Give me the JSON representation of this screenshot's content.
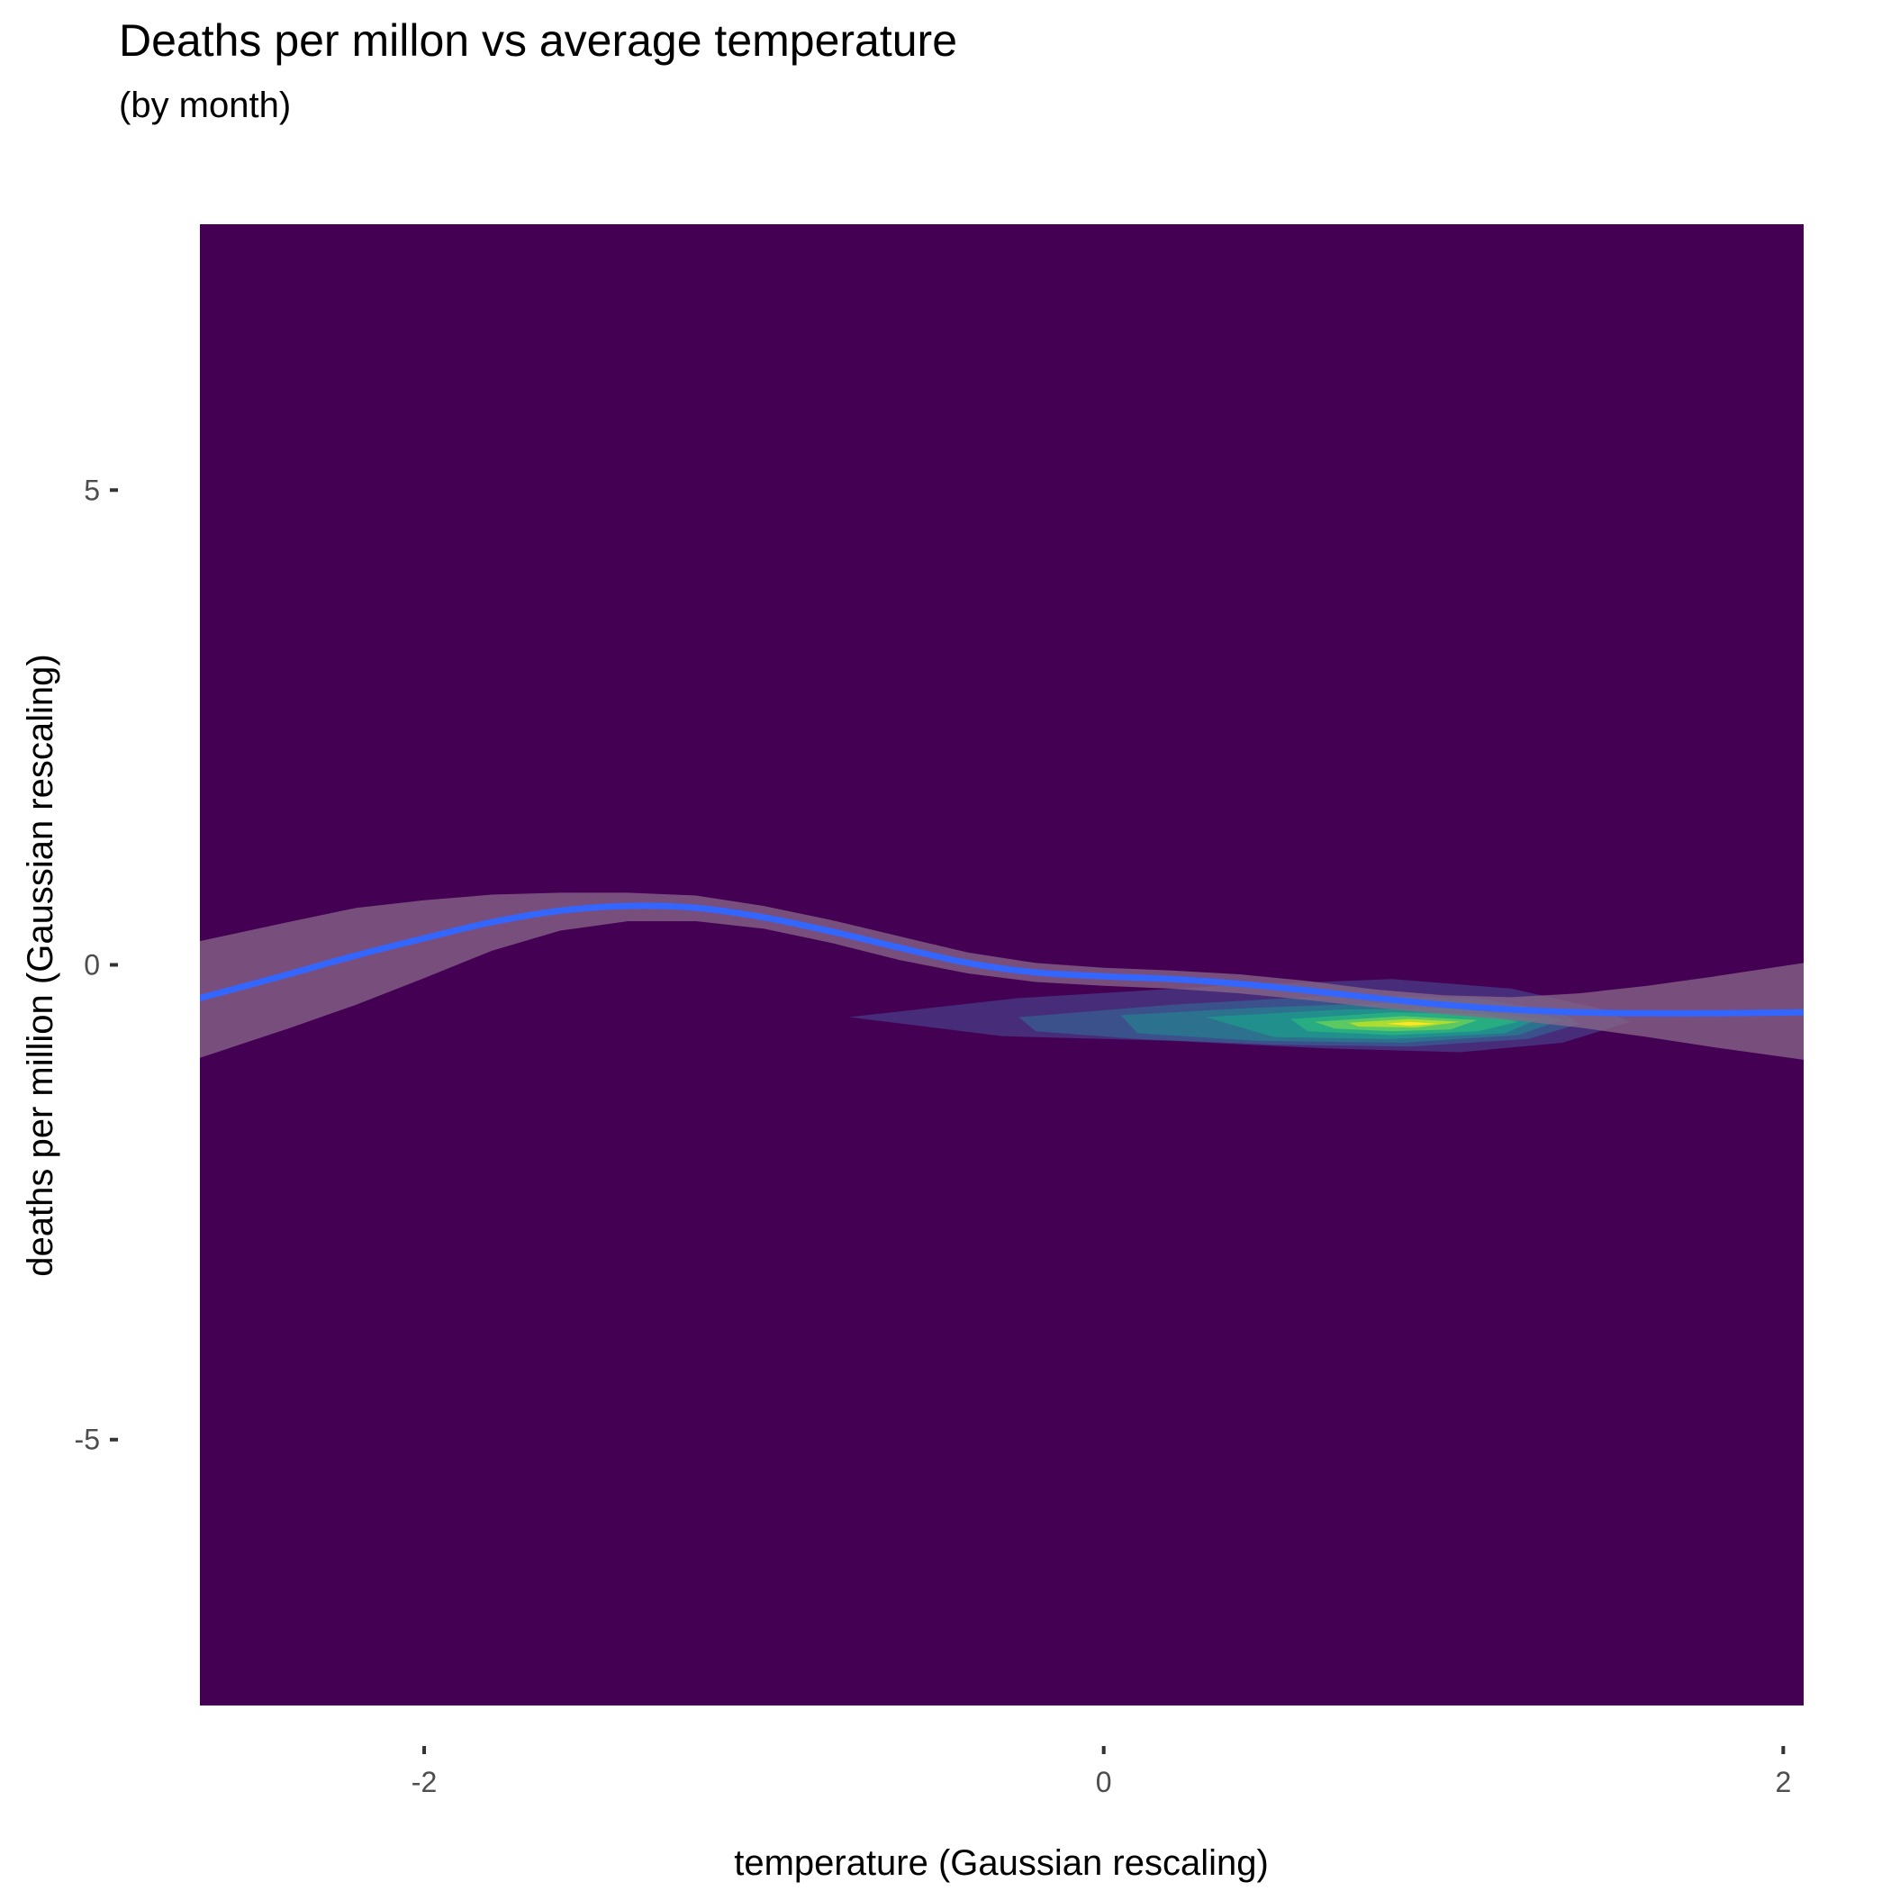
{
  "chart_data": {
    "type": "heatmap",
    "title": "Deaths per millon vs average temperature",
    "subtitle": "(by month)",
    "xlabel": "temperature (Gaussian rescaling)",
    "ylabel": "deaths per million (Gaussian rescaling)",
    "xlim": [
      -2.66,
      2.06
    ],
    "ylim": [
      -7.8,
      7.8
    ],
    "x_ticks": [
      -2,
      0,
      2
    ],
    "y_ticks": [
      5,
      0,
      -5
    ],
    "x_tick_labels": [
      "-2",
      "0",
      "2"
    ],
    "y_tick_labels": [
      "5",
      "0",
      "-5"
    ],
    "grid": false,
    "legend": "none",
    "colors": {
      "background": "#440154",
      "smooth_line": "#3366FF",
      "ribbon": "#8a6a8a",
      "density_levels": [
        "#472c7a",
        "#3b518b",
        "#2c718e",
        "#21908d",
        "#27ad81",
        "#5cc863",
        "#aadc32",
        "#fde725"
      ]
    },
    "density_contours": [
      {
        "level": 1,
        "points": [
          [
            -0.75,
            -0.55
          ],
          [
            -0.25,
            -0.35
          ],
          [
            0.35,
            -0.22
          ],
          [
            0.85,
            -0.15
          ],
          [
            1.2,
            -0.25
          ],
          [
            1.45,
            -0.45
          ],
          [
            1.55,
            -0.6
          ],
          [
            1.35,
            -0.82
          ],
          [
            1.05,
            -0.92
          ],
          [
            0.65,
            -0.88
          ],
          [
            0.2,
            -0.8
          ],
          [
            -0.3,
            -0.75
          ],
          [
            -0.75,
            -0.55
          ]
        ]
      },
      {
        "level": 2,
        "points": [
          [
            -0.25,
            -0.55
          ],
          [
            0.2,
            -0.42
          ],
          [
            0.7,
            -0.32
          ],
          [
            1.1,
            -0.35
          ],
          [
            1.35,
            -0.5
          ],
          [
            1.4,
            -0.62
          ],
          [
            1.25,
            -0.78
          ],
          [
            0.9,
            -0.86
          ],
          [
            0.5,
            -0.84
          ],
          [
            0.1,
            -0.78
          ],
          [
            -0.2,
            -0.7
          ],
          [
            -0.25,
            -0.55
          ]
        ]
      },
      {
        "level": 3,
        "points": [
          [
            0.05,
            -0.53
          ],
          [
            0.45,
            -0.45
          ],
          [
            0.85,
            -0.4
          ],
          [
            1.2,
            -0.45
          ],
          [
            1.35,
            -0.58
          ],
          [
            1.22,
            -0.74
          ],
          [
            0.88,
            -0.82
          ],
          [
            0.45,
            -0.8
          ],
          [
            0.1,
            -0.72
          ],
          [
            0.05,
            -0.53
          ]
        ]
      },
      {
        "level": 4,
        "points": [
          [
            0.3,
            -0.55
          ],
          [
            0.7,
            -0.47
          ],
          [
            1.05,
            -0.46
          ],
          [
            1.28,
            -0.57
          ],
          [
            1.18,
            -0.72
          ],
          [
            0.85,
            -0.78
          ],
          [
            0.5,
            -0.76
          ],
          [
            0.3,
            -0.55
          ]
        ]
      },
      {
        "level": 5,
        "points": [
          [
            0.55,
            -0.57
          ],
          [
            0.85,
            -0.5
          ],
          [
            1.12,
            -0.52
          ],
          [
            1.22,
            -0.6
          ],
          [
            1.1,
            -0.7
          ],
          [
            0.85,
            -0.74
          ],
          [
            0.6,
            -0.7
          ],
          [
            0.55,
            -0.57
          ]
        ]
      },
      {
        "level": 6,
        "points": [
          [
            0.62,
            -0.6
          ],
          [
            0.88,
            -0.54
          ],
          [
            1.1,
            -0.58
          ],
          [
            1.02,
            -0.68
          ],
          [
            0.85,
            -0.7
          ],
          [
            0.68,
            -0.67
          ],
          [
            0.62,
            -0.6
          ]
        ]
      },
      {
        "level": 7,
        "points": [
          [
            0.72,
            -0.61
          ],
          [
            0.9,
            -0.57
          ],
          [
            1.05,
            -0.6
          ],
          [
            0.92,
            -0.66
          ],
          [
            0.75,
            -0.65
          ],
          [
            0.72,
            -0.61
          ]
        ]
      },
      {
        "level": 8,
        "points": [
          [
            0.83,
            -0.62
          ],
          [
            0.9,
            -0.6
          ],
          [
            0.98,
            -0.62
          ],
          [
            0.9,
            -0.64
          ],
          [
            0.83,
            -0.62
          ]
        ]
      }
    ],
    "smooth_line": {
      "x": [
        -2.66,
        -2.4,
        -2.2,
        -2.0,
        -1.8,
        -1.6,
        -1.4,
        -1.2,
        -1.0,
        -0.8,
        -0.6,
        -0.4,
        -0.2,
        0.0,
        0.2,
        0.4,
        0.6,
        0.8,
        1.0,
        1.2,
        1.4,
        1.6,
        1.8,
        2.06
      ],
      "y": [
        -0.35,
        -0.1,
        0.1,
        0.28,
        0.45,
        0.57,
        0.62,
        0.6,
        0.5,
        0.35,
        0.18,
        0.02,
        -0.08,
        -0.12,
        -0.15,
        -0.2,
        -0.27,
        -0.35,
        -0.42,
        -0.47,
        -0.5,
        -0.51,
        -0.51,
        -0.5
      ]
    },
    "confidence_band": {
      "x": [
        -2.66,
        -2.4,
        -2.2,
        -2.0,
        -1.8,
        -1.6,
        -1.4,
        -1.2,
        -1.0,
        -0.8,
        -0.6,
        -0.4,
        -0.2,
        0.0,
        0.2,
        0.4,
        0.6,
        0.8,
        1.0,
        1.2,
        1.4,
        1.6,
        1.8,
        2.06
      ],
      "upper": [
        0.25,
        0.45,
        0.6,
        0.68,
        0.74,
        0.76,
        0.76,
        0.73,
        0.62,
        0.47,
        0.3,
        0.13,
        0.02,
        -0.03,
        -0.06,
        -0.1,
        -0.17,
        -0.26,
        -0.32,
        -0.34,
        -0.3,
        -0.22,
        -0.12,
        0.02
      ],
      "lower": [
        -0.98,
        -0.67,
        -0.42,
        -0.14,
        0.15,
        0.36,
        0.46,
        0.46,
        0.38,
        0.23,
        0.05,
        -0.09,
        -0.18,
        -0.22,
        -0.25,
        -0.3,
        -0.37,
        -0.45,
        -0.52,
        -0.58,
        -0.66,
        -0.76,
        -0.87,
        -1.0
      ]
    }
  }
}
